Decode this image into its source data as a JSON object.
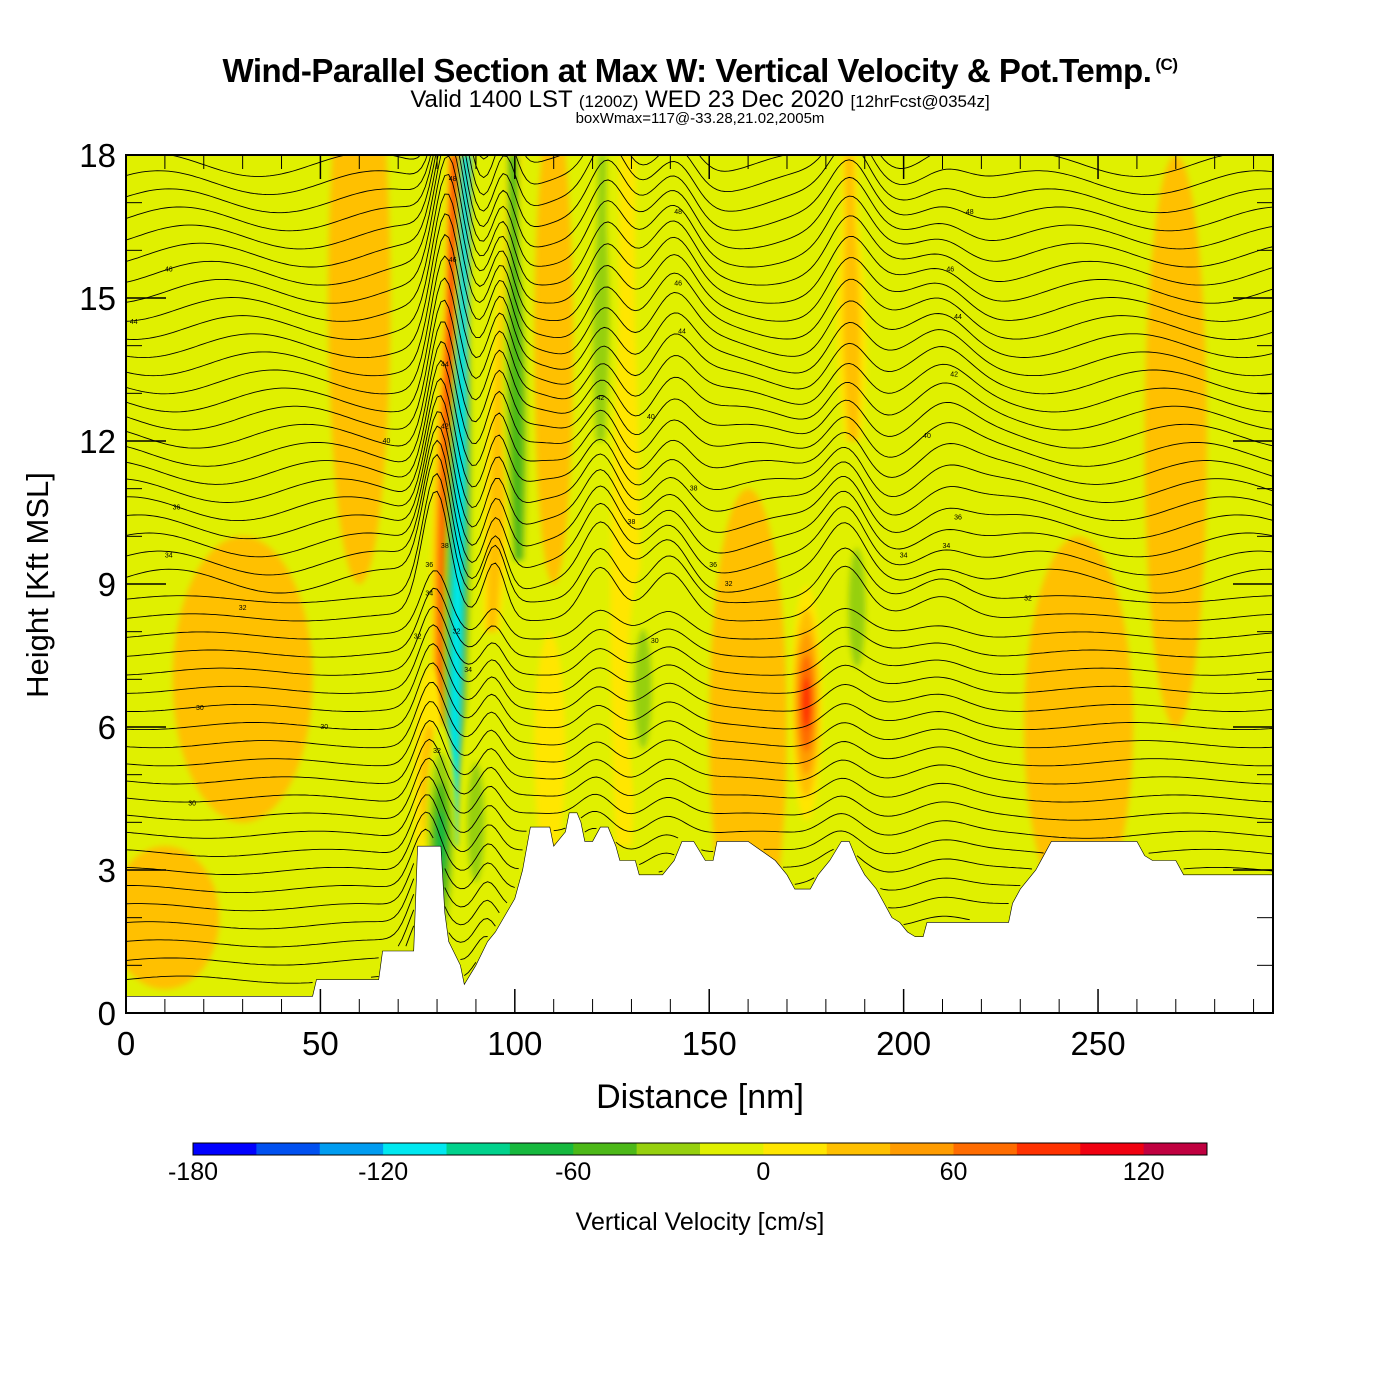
{
  "title": {
    "main": "Wind-Parallel Section at Max W: Vertical Velocity & Pot.Temp.",
    "copyright": "(C)",
    "valid_prefix": "Valid 1400 LST",
    "valid_z": "(1200Z)",
    "valid_date": "WED 23 Dec 2020",
    "forecast": "[12hrFcst@0354z]",
    "boxwmax": "boxWmax=117@-33.28,21.02,2005m"
  },
  "chart_data": {
    "type": "heatmap",
    "xlabel": "Distance [nm]",
    "ylabel": "Height [Kft MSL]",
    "xlim": [
      0,
      295
    ],
    "ylim": [
      0,
      18
    ],
    "x_ticks": [
      "0",
      "50",
      "100",
      "150",
      "200",
      "250"
    ],
    "y_ticks": [
      "0",
      "3",
      "6",
      "9",
      "12",
      "15",
      "18"
    ],
    "colorbar": {
      "label": "Vertical Velocity [cm/s]",
      "range": [
        -180,
        140
      ],
      "step": 20,
      "tick_labels": [
        "-180",
        "-120",
        "-60",
        "0",
        "60",
        "120"
      ],
      "colors": [
        "#0000ff",
        "#0050f0",
        "#009cf0",
        "#00e8f0",
        "#00d28c",
        "#16b83e",
        "#4cb818",
        "#96d00e",
        "#e0f000",
        "#ffe600",
        "#ffc000",
        "#ff9c00",
        "#ff6c00",
        "#ff3200",
        "#f00010",
        "#c00040"
      ]
    },
    "terrain": [
      [
        0,
        0.35
      ],
      [
        48,
        0.35
      ],
      [
        49,
        0.7
      ],
      [
        56,
        0.7
      ],
      [
        65,
        0.7
      ],
      [
        66,
        1.3
      ],
      [
        72,
        1.3
      ],
      [
        74,
        1.3
      ],
      [
        75,
        3.5
      ],
      [
        79,
        3.5
      ],
      [
        80,
        3.5
      ],
      [
        81,
        3.5
      ],
      [
        82,
        2.1
      ],
      [
        83,
        1.5
      ],
      [
        86,
        1.0
      ],
      [
        87,
        0.6
      ],
      [
        90,
        1.0
      ],
      [
        93,
        1.5
      ],
      [
        95,
        1.7
      ],
      [
        100,
        2.4
      ],
      [
        102,
        3.0
      ],
      [
        104,
        3.9
      ],
      [
        109,
        3.9
      ],
      [
        110,
        3.5
      ],
      [
        113,
        3.8
      ],
      [
        114,
        4.2
      ],
      [
        116,
        4.2
      ],
      [
        117,
        4.0
      ],
      [
        118,
        3.6
      ],
      [
        120,
        3.6
      ],
      [
        122,
        3.9
      ],
      [
        124,
        3.9
      ],
      [
        126,
        3.5
      ],
      [
        127,
        3.2
      ],
      [
        131,
        3.2
      ],
      [
        132,
        2.9
      ],
      [
        138,
        2.9
      ],
      [
        141,
        3.2
      ],
      [
        143,
        3.6
      ],
      [
        146,
        3.6
      ],
      [
        149,
        3.2
      ],
      [
        151,
        3.2
      ],
      [
        152,
        3.6
      ],
      [
        160,
        3.6
      ],
      [
        167,
        3.2
      ],
      [
        170,
        2.9
      ],
      [
        172,
        2.6
      ],
      [
        176,
        2.6
      ],
      [
        178,
        2.9
      ],
      [
        181,
        3.2
      ],
      [
        184,
        3.6
      ],
      [
        186,
        3.6
      ],
      [
        188,
        3.2
      ],
      [
        190,
        2.9
      ],
      [
        193,
        2.6
      ],
      [
        195,
        2.3
      ],
      [
        197,
        2.0
      ],
      [
        199,
        1.9
      ],
      [
        201,
        1.7
      ],
      [
        203,
        1.6
      ],
      [
        205,
        1.6
      ],
      [
        206,
        1.9
      ],
      [
        214,
        1.9
      ],
      [
        227,
        1.9
      ],
      [
        228,
        2.3
      ],
      [
        230,
        2.6
      ],
      [
        234,
        3.0
      ],
      [
        236,
        3.3
      ],
      [
        238,
        3.6
      ],
      [
        244,
        3.6
      ],
      [
        260,
        3.6
      ],
      [
        262,
        3.3
      ],
      [
        264,
        3.2
      ],
      [
        270,
        3.2
      ],
      [
        272,
        2.9
      ],
      [
        295,
        2.9
      ]
    ],
    "updrafts": [
      {
        "x": 81,
        "y_from": 5.0,
        "y_to": 18.0,
        "x_shift": 3.6,
        "value": 117
      },
      {
        "x": 175,
        "y": 6.5,
        "value": 110
      },
      {
        "x": 94,
        "y_from": 8.0,
        "y_to": 18.0,
        "x_shift": 6.0,
        "value": 40
      },
      {
        "x": 109,
        "y": 5.5,
        "value": 30
      },
      {
        "x": 128,
        "y_from": 3.5,
        "y_to": 18.0,
        "x_shift": 1.0,
        "value": 30
      },
      {
        "x": 187,
        "y_from": 12.0,
        "y_to": 18.0,
        "x_shift": -1.0,
        "value": 40
      },
      {
        "x": 78,
        "y": 4.8,
        "value": 45
      }
    ],
    "downdrafts": [
      {
        "x": 84,
        "y_from": 3.5,
        "y_to": 18.0,
        "x_shift": 3.5,
        "value": -120
      },
      {
        "x": 81,
        "y": 3.6,
        "value": -90
      },
      {
        "x": 90,
        "y": 4.0,
        "value": -50
      },
      {
        "x": 101,
        "y_from": 9.5,
        "y_to": 18.0,
        "x_shift": -1.5,
        "value": -60
      },
      {
        "x": 122,
        "y_from": 12.0,
        "y_to": 18.0,
        "x_shift": 0.5,
        "value": -40
      },
      {
        "x": 133,
        "y": 6.8,
        "value": -40
      },
      {
        "x": 188,
        "y": 8.5,
        "value": -40
      },
      {
        "x": 44,
        "y": 17.0,
        "value": -30
      }
    ],
    "theta_contours": {
      "levels": [
        20,
        22,
        24,
        26,
        28,
        30,
        32,
        34,
        36,
        38,
        40,
        42,
        44,
        46,
        48
      ],
      "labels": [
        {
          "x": 17,
          "y": 4.4,
          "text": "30"
        },
        {
          "x": 51,
          "y": 6.0,
          "text": "30"
        },
        {
          "x": 19,
          "y": 6.4,
          "text": "30"
        },
        {
          "x": 30,
          "y": 8.5,
          "text": "32"
        },
        {
          "x": 11,
          "y": 9.6,
          "text": "34"
        },
        {
          "x": 13,
          "y": 10.6,
          "text": "36"
        },
        {
          "x": 67,
          "y": 12.0,
          "text": "40"
        },
        {
          "x": 11,
          "y": 15.6,
          "text": "46"
        },
        {
          "x": 2,
          "y": 14.5,
          "text": "44"
        },
        {
          "x": 80,
          "y": 5.5,
          "text": "32"
        },
        {
          "x": 75,
          "y": 7.9,
          "text": "32"
        },
        {
          "x": 78,
          "y": 8.8,
          "text": "34"
        },
        {
          "x": 78,
          "y": 9.4,
          "text": "36"
        },
        {
          "x": 82,
          "y": 9.8,
          "text": "38"
        },
        {
          "x": 85,
          "y": 8.0,
          "text": "32"
        },
        {
          "x": 88,
          "y": 7.2,
          "text": "34"
        },
        {
          "x": 82,
          "y": 12.3,
          "text": "42"
        },
        {
          "x": 82,
          "y": 13.6,
          "text": "44"
        },
        {
          "x": 84,
          "y": 15.8,
          "text": "46"
        },
        {
          "x": 84,
          "y": 17.5,
          "text": "48"
        },
        {
          "x": 122,
          "y": 12.9,
          "text": "42"
        },
        {
          "x": 130,
          "y": 10.3,
          "text": "38"
        },
        {
          "x": 136,
          "y": 7.8,
          "text": "30"
        },
        {
          "x": 135,
          "y": 12.5,
          "text": "40"
        },
        {
          "x": 142,
          "y": 16.8,
          "text": "48"
        },
        {
          "x": 142,
          "y": 15.3,
          "text": "46"
        },
        {
          "x": 143,
          "y": 14.3,
          "text": "44"
        },
        {
          "x": 146,
          "y": 11.0,
          "text": "38"
        },
        {
          "x": 151,
          "y": 9.4,
          "text": "36"
        },
        {
          "x": 155,
          "y": 9.0,
          "text": "32"
        },
        {
          "x": 206,
          "y": 12.1,
          "text": "40"
        },
        {
          "x": 213,
          "y": 13.4,
          "text": "42"
        },
        {
          "x": 214,
          "y": 14.6,
          "text": "44"
        },
        {
          "x": 212,
          "y": 15.6,
          "text": "46"
        },
        {
          "x": 217,
          "y": 16.8,
          "text": "48"
        },
        {
          "x": 214,
          "y": 10.4,
          "text": "36"
        },
        {
          "x": 200,
          "y": 9.6,
          "text": "34"
        },
        {
          "x": 211,
          "y": 9.8,
          "text": "34"
        },
        {
          "x": 232,
          "y": 8.7,
          "text": "32"
        }
      ]
    }
  }
}
